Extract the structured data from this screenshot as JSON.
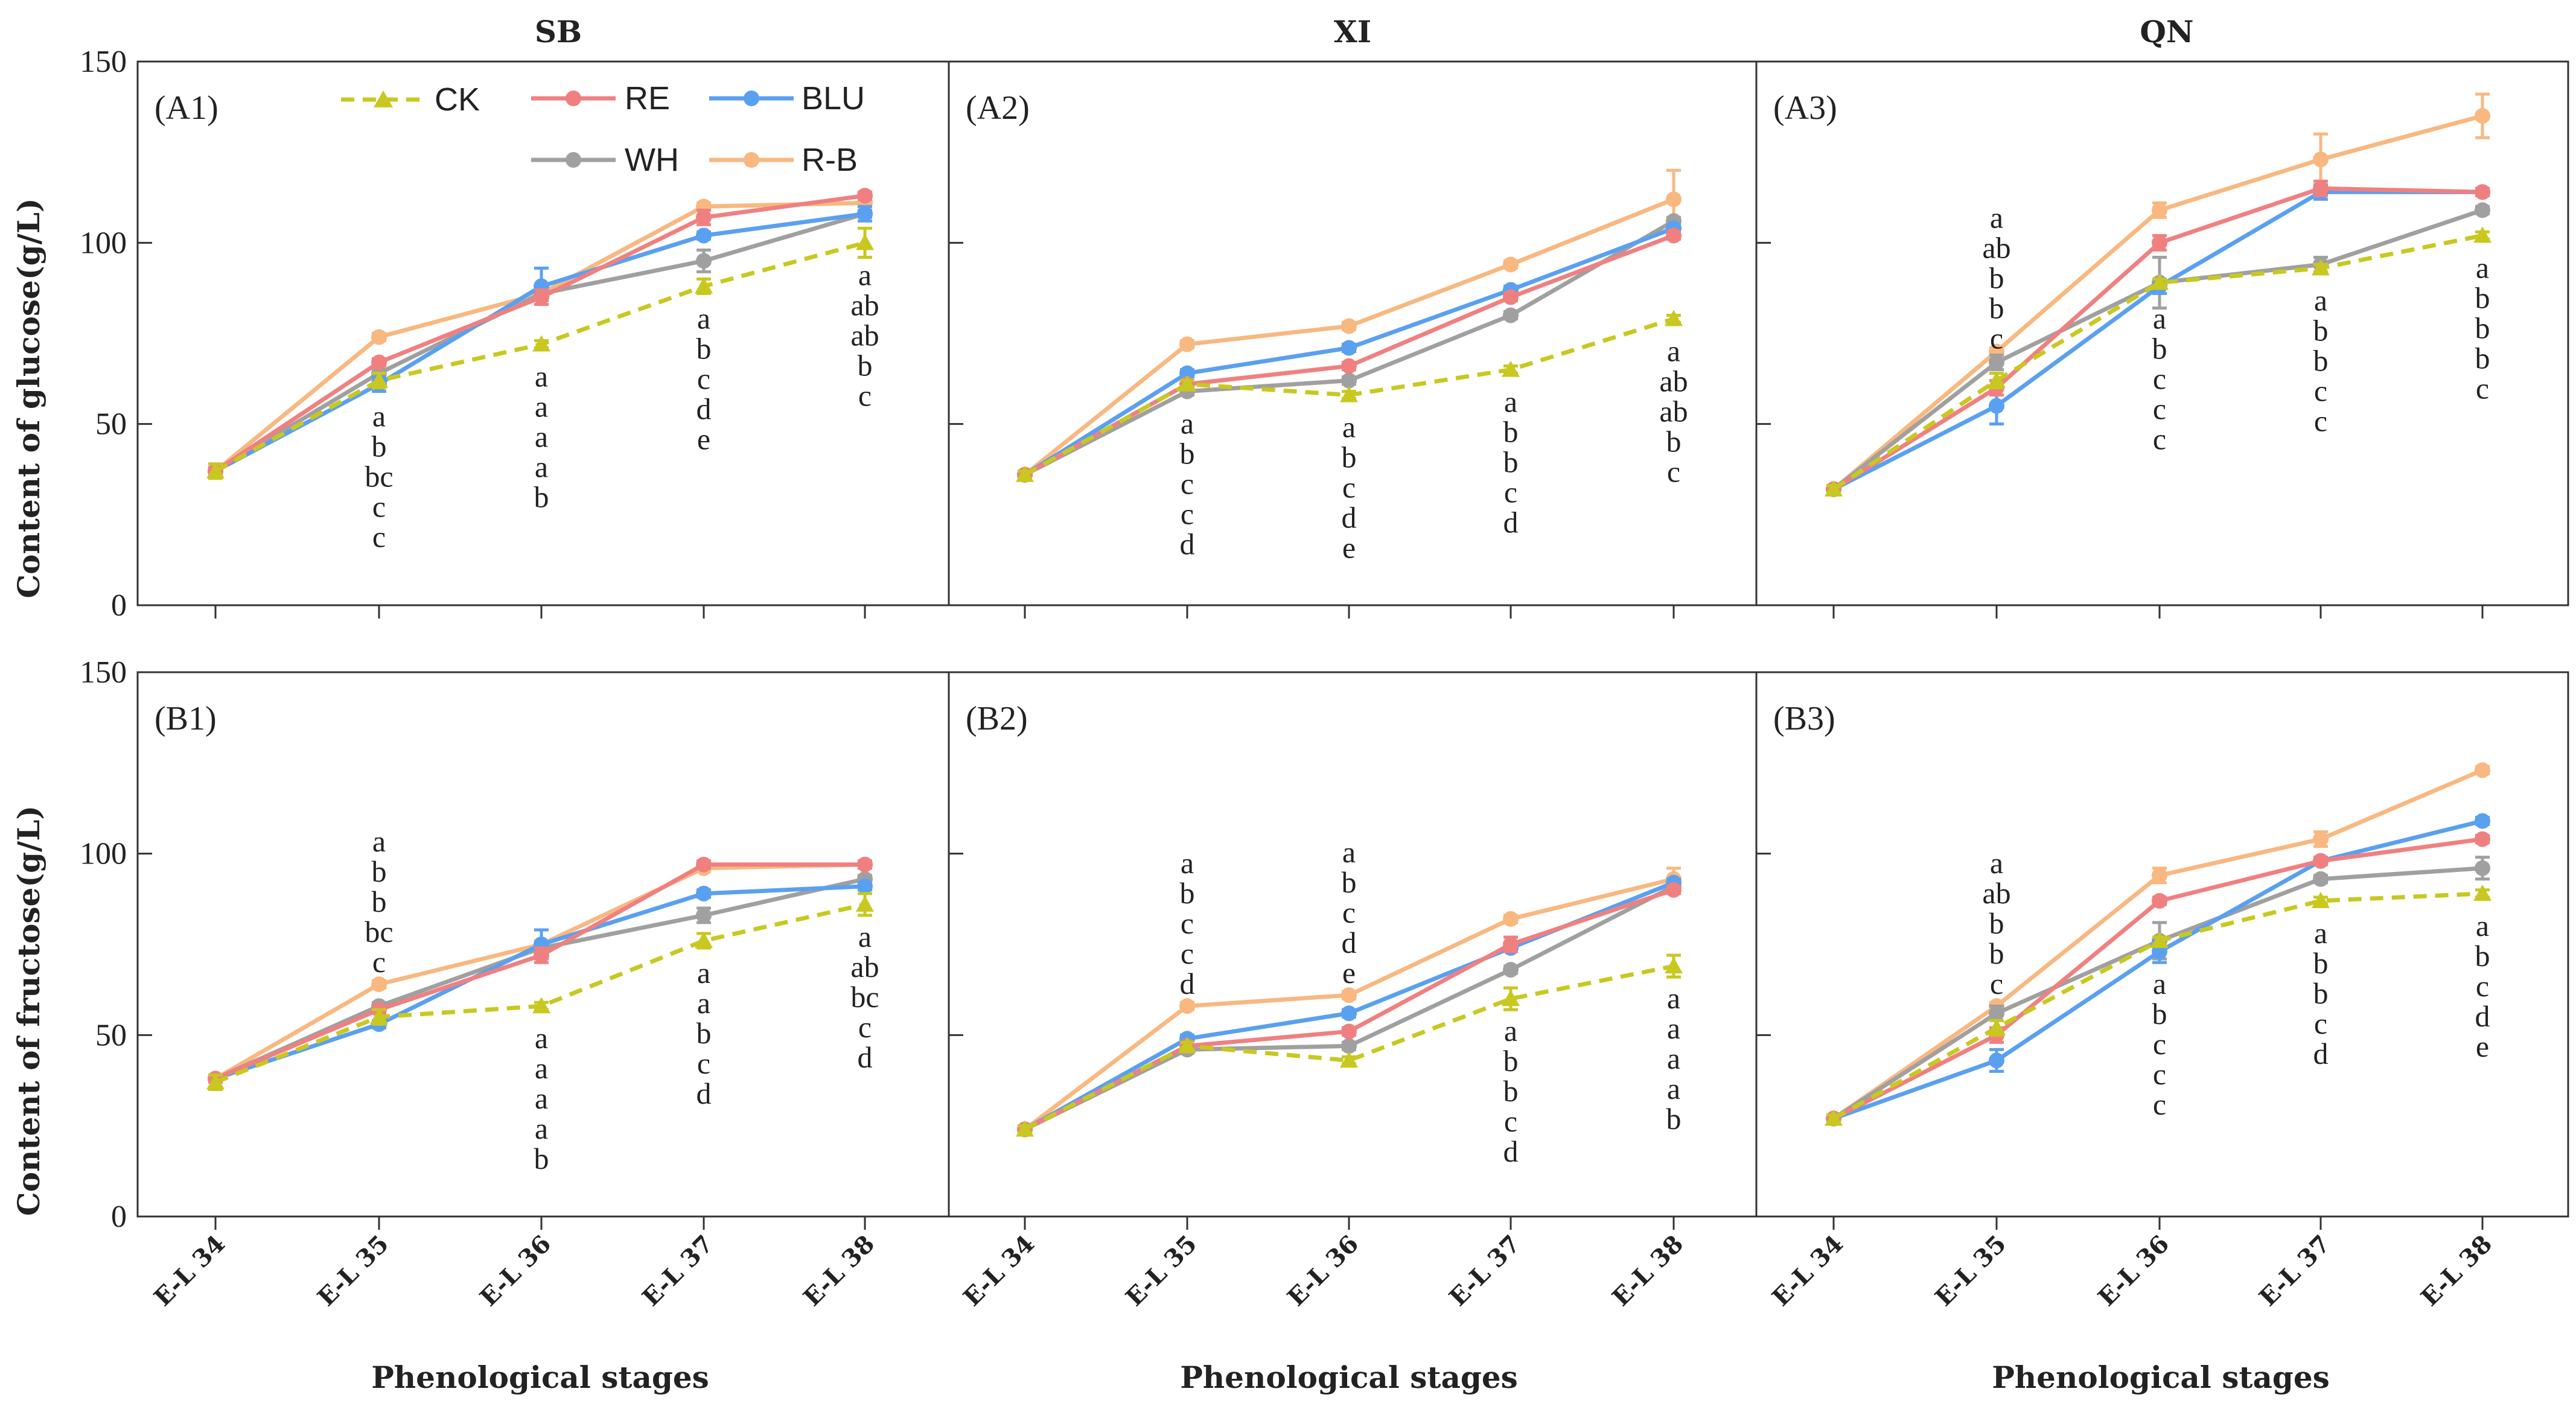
{
  "figure": {
    "column_titles": [
      "SB",
      "XI",
      "QN"
    ],
    "y_titles": {
      "A": "Content of glucose(g/L)",
      "B": "Content of fructose(g/L)"
    },
    "x_title": "Phenological stages",
    "x_ticks": [
      "E-L 34",
      "E-L 35",
      "E-L 36",
      "E-L 37",
      "E-L 38"
    ],
    "y_ticks": [
      "0",
      "50",
      "100",
      "150"
    ]
  },
  "legend": [
    {
      "name": "CK",
      "color": "#c8c820",
      "style": "dashed",
      "marker": "triangle"
    },
    {
      "name": "RE",
      "color": "#f08080",
      "style": "solid",
      "marker": "circle"
    },
    {
      "name": "BLU",
      "color": "#5aa0f0",
      "style": "solid",
      "marker": "circle"
    },
    {
      "name": "WH",
      "color": "#a0a0a0",
      "style": "solid",
      "marker": "circle"
    },
    {
      "name": "R-B",
      "color": "#f8b880",
      "style": "solid",
      "marker": "circle"
    }
  ],
  "chart_data": [
    {
      "id": "A1",
      "label": "(A1)",
      "type": "line",
      "row": "A",
      "col": 0,
      "ylim": [
        0,
        150
      ],
      "categories": [
        "E-L 34",
        "E-L 35",
        "E-L 36",
        "E-L 37",
        "E-L 38"
      ],
      "series": [
        {
          "name": "CK",
          "values": [
            37,
            62,
            72,
            88,
            100
          ],
          "errors": [
            2,
            2,
            1,
            2,
            4
          ]
        },
        {
          "name": "RE",
          "values": [
            37,
            67,
            85,
            107,
            113
          ],
          "errors": [
            1,
            1,
            2,
            2,
            1
          ]
        },
        {
          "name": "BLU",
          "values": [
            37,
            61,
            88,
            102,
            108
          ],
          "errors": [
            1,
            2,
            5,
            1,
            2
          ]
        },
        {
          "name": "WH",
          "values": [
            37,
            64,
            86,
            95,
            108
          ],
          "errors": [
            1,
            2,
            2,
            3,
            1
          ]
        },
        {
          "name": "R-B",
          "values": [
            37,
            74,
            86,
            110,
            111
          ],
          "errors": [
            1,
            1,
            1,
            1,
            1
          ]
        }
      ],
      "letters": [
        {
          "stage": 1,
          "items": [
            "a",
            "b",
            "bc",
            "c",
            "c"
          ]
        },
        {
          "stage": 2,
          "items": [
            "a",
            "a",
            "a",
            "a",
            "b"
          ]
        },
        {
          "stage": 3,
          "items": [
            "a",
            "b",
            "c",
            "d",
            "e"
          ]
        },
        {
          "stage": 4,
          "items": [
            "a",
            "ab",
            "ab",
            "b",
            "c"
          ]
        }
      ]
    },
    {
      "id": "A2",
      "label": "(A2)",
      "type": "line",
      "row": "A",
      "col": 1,
      "ylim": [
        0,
        150
      ],
      "categories": [
        "E-L 34",
        "E-L 35",
        "E-L 36",
        "E-L 37",
        "E-L 38"
      ],
      "series": [
        {
          "name": "CK",
          "values": [
            36,
            61,
            58,
            65,
            79
          ],
          "errors": [
            1,
            1,
            1,
            1,
            1
          ]
        },
        {
          "name": "RE",
          "values": [
            36,
            61,
            66,
            85,
            102
          ],
          "errors": [
            1,
            1,
            1,
            1,
            1
          ]
        },
        {
          "name": "BLU",
          "values": [
            36,
            64,
            71,
            87,
            104
          ],
          "errors": [
            1,
            1,
            1,
            1,
            1
          ]
        },
        {
          "name": "WH",
          "values": [
            36,
            59,
            62,
            80,
            106
          ],
          "errors": [
            1,
            1,
            1,
            1,
            1
          ]
        },
        {
          "name": "R-B",
          "values": [
            36,
            72,
            77,
            94,
            112
          ],
          "errors": [
            1,
            1,
            1,
            1,
            8
          ]
        }
      ],
      "letters": [
        {
          "stage": 1,
          "items": [
            "a",
            "b",
            "c",
            "c",
            "d"
          ]
        },
        {
          "stage": 2,
          "items": [
            "a",
            "b",
            "c",
            "d",
            "e"
          ]
        },
        {
          "stage": 3,
          "items": [
            "a",
            "b",
            "b",
            "c",
            "d"
          ]
        },
        {
          "stage": 4,
          "items": [
            "a",
            "ab",
            "ab",
            "b",
            "c"
          ]
        }
      ]
    },
    {
      "id": "A3",
      "label": "(A3)",
      "type": "line",
      "row": "A",
      "col": 2,
      "ylim": [
        0,
        150
      ],
      "categories": [
        "E-L 34",
        "E-L 35",
        "E-L 36",
        "E-L 37",
        "E-L 38"
      ],
      "series": [
        {
          "name": "CK",
          "values": [
            32,
            62,
            89,
            93,
            102
          ],
          "errors": [
            1,
            2,
            1,
            1,
            1
          ]
        },
        {
          "name": "RE",
          "values": [
            32,
            60,
            100,
            115,
            114
          ],
          "errors": [
            1,
            2,
            2,
            2,
            1
          ]
        },
        {
          "name": "BLU",
          "values": [
            32,
            55,
            88,
            114,
            114
          ],
          "errors": [
            1,
            5,
            2,
            2,
            1
          ]
        },
        {
          "name": "WH",
          "values": [
            32,
            67,
            89,
            94,
            109
          ],
          "errors": [
            1,
            2,
            7,
            2,
            1
          ]
        },
        {
          "name": "R-B",
          "values": [
            32,
            70,
            109,
            123,
            135
          ],
          "errors": [
            1,
            1,
            2,
            7,
            6
          ]
        }
      ],
      "letters": [
        {
          "stage": 1,
          "items": [
            "a",
            "ab",
            "b",
            "b",
            "c"
          ]
        },
        {
          "stage": 2,
          "items": [
            "a",
            "b",
            "c",
            "c",
            "c"
          ]
        },
        {
          "stage": 3,
          "items": [
            "a",
            "b",
            "b",
            "c",
            "c"
          ]
        },
        {
          "stage": 4,
          "items": [
            "a",
            "b",
            "b",
            "b",
            "c"
          ]
        }
      ]
    },
    {
      "id": "B1",
      "label": "(B1)",
      "type": "line",
      "row": "B",
      "col": 0,
      "ylim": [
        0,
        150
      ],
      "categories": [
        "E-L 34",
        "E-L 35",
        "E-L 36",
        "E-L 37",
        "E-L 38"
      ],
      "series": [
        {
          "name": "CK",
          "values": [
            37,
            55,
            58,
            76,
            86
          ],
          "errors": [
            2,
            2,
            1,
            2,
            3
          ]
        },
        {
          "name": "RE",
          "values": [
            38,
            57,
            72,
            97,
            97
          ],
          "errors": [
            1,
            1,
            2,
            1,
            1
          ]
        },
        {
          "name": "BLU",
          "values": [
            38,
            53,
            75,
            89,
            91
          ],
          "errors": [
            1,
            1,
            4,
            1,
            1
          ]
        },
        {
          "name": "WH",
          "values": [
            38,
            58,
            74,
            83,
            93
          ],
          "errors": [
            1,
            1,
            1,
            2,
            1
          ]
        },
        {
          "name": "R-B",
          "values": [
            38,
            64,
            75,
            96,
            97
          ],
          "errors": [
            1,
            1,
            1,
            1,
            1
          ]
        }
      ],
      "letters": [
        {
          "stage": 1,
          "items": [
            "a",
            "b",
            "b",
            "bc",
            "c"
          ]
        },
        {
          "stage": 2,
          "items": [
            "a",
            "a",
            "a",
            "a",
            "b"
          ]
        },
        {
          "stage": 3,
          "items": [
            "a",
            "a",
            "b",
            "c",
            "d"
          ]
        },
        {
          "stage": 4,
          "items": [
            "a",
            "ab",
            "bc",
            "c",
            "d"
          ]
        }
      ]
    },
    {
      "id": "B2",
      "label": "(B2)",
      "type": "line",
      "row": "B",
      "col": 1,
      "ylim": [
        0,
        150
      ],
      "categories": [
        "E-L 34",
        "E-L 35",
        "E-L 36",
        "E-L 37",
        "E-L 38"
      ],
      "series": [
        {
          "name": "CK",
          "values": [
            24,
            47,
            43,
            60,
            69
          ],
          "errors": [
            1,
            1,
            1,
            3,
            3
          ]
        },
        {
          "name": "RE",
          "values": [
            24,
            47,
            51,
            75,
            90
          ],
          "errors": [
            1,
            1,
            1,
            2,
            1
          ]
        },
        {
          "name": "BLU",
          "values": [
            24,
            49,
            56,
            74,
            92
          ],
          "errors": [
            1,
            1,
            1,
            1,
            1
          ]
        },
        {
          "name": "WH",
          "values": [
            24,
            46,
            47,
            68,
            91
          ],
          "errors": [
            1,
            1,
            1,
            1,
            1
          ]
        },
        {
          "name": "R-B",
          "values": [
            24,
            58,
            61,
            82,
            93
          ],
          "errors": [
            1,
            1,
            1,
            1,
            3
          ]
        }
      ],
      "letters": [
        {
          "stage": 1,
          "items": [
            "a",
            "b",
            "c",
            "c",
            "d"
          ]
        },
        {
          "stage": 2,
          "items": [
            "a",
            "b",
            "c",
            "d",
            "e"
          ]
        },
        {
          "stage": 3,
          "items": [
            "a",
            "b",
            "b",
            "c",
            "d"
          ]
        },
        {
          "stage": 4,
          "items": [
            "a",
            "a",
            "a",
            "a",
            "b"
          ]
        }
      ]
    },
    {
      "id": "B3",
      "label": "(B3)",
      "type": "line",
      "row": "B",
      "col": 2,
      "ylim": [
        0,
        150
      ],
      "categories": [
        "E-L 34",
        "E-L 35",
        "E-L 36",
        "E-L 37",
        "E-L 38"
      ],
      "series": [
        {
          "name": "CK",
          "values": [
            27,
            52,
            76,
            87,
            89
          ],
          "errors": [
            1,
            2,
            1,
            1,
            1
          ]
        },
        {
          "name": "RE",
          "values": [
            27,
            50,
            87,
            98,
            104
          ],
          "errors": [
            1,
            2,
            1,
            1,
            1
          ]
        },
        {
          "name": "BLU",
          "values": [
            27,
            43,
            73,
            98,
            109
          ],
          "errors": [
            1,
            3,
            3,
            1,
            1
          ]
        },
        {
          "name": "WH",
          "values": [
            27,
            56,
            76,
            93,
            96
          ],
          "errors": [
            1,
            2,
            5,
            1,
            3
          ]
        },
        {
          "name": "R-B",
          "values": [
            27,
            58,
            94,
            104,
            123
          ],
          "errors": [
            1,
            1,
            2,
            2,
            1
          ]
        }
      ],
      "letters": [
        {
          "stage": 1,
          "items": [
            "a",
            "ab",
            "b",
            "b",
            "c"
          ]
        },
        {
          "stage": 2,
          "items": [
            "a",
            "b",
            "c",
            "c",
            "c"
          ]
        },
        {
          "stage": 3,
          "items": [
            "a",
            "b",
            "b",
            "c",
            "d"
          ]
        },
        {
          "stage": 4,
          "items": [
            "a",
            "b",
            "c",
            "d",
            "e"
          ]
        }
      ]
    }
  ]
}
